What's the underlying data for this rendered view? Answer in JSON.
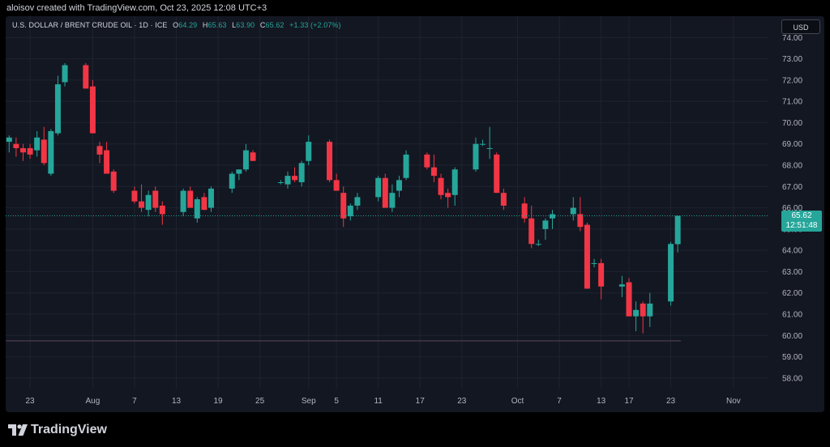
{
  "header": {
    "created_text": "aloisov created with TradingView.com, Oct 23, 2025 12:08 UTC+3"
  },
  "legend": {
    "symbol": "U.S. DOLLAR / BRENT CRUDE OIL · 1D · ICE",
    "o_label": "O",
    "o_value": "64.29",
    "h_label": "H",
    "h_value": "65.63",
    "l_label": "L",
    "l_value": "63.90",
    "c_label": "C",
    "c_value": "65.62",
    "change": "+1.33 (+2.07%)"
  },
  "currency_button": "USD",
  "price_tag": {
    "price": "65.62",
    "countdown": "12:51:48"
  },
  "footer": {
    "brand": "TradingView"
  },
  "colors": {
    "up": "#26a69a",
    "down": "#f23645",
    "background": "#131722",
    "grid": "#1f2330",
    "text": "#b2b5be"
  },
  "chart_data": {
    "type": "candlestick",
    "ylim": [
      57.5,
      75
    ],
    "y_ticks": [
      "74.00",
      "73.00",
      "72.00",
      "71.00",
      "70.00",
      "69.00",
      "68.00",
      "67.00",
      "66.00",
      "65.00",
      "64.00",
      "63.00",
      "62.00",
      "61.00",
      "60.00",
      "59.00",
      "58.00"
    ],
    "x_ticks": [
      {
        "label": "23",
        "day": 0
      },
      {
        "label": "Aug",
        "day": 9
      },
      {
        "label": "7",
        "day": 15
      },
      {
        "label": "13",
        "day": 21
      },
      {
        "label": "19",
        "day": 27
      },
      {
        "label": "25",
        "day": 33
      },
      {
        "label": "Sep",
        "day": 40
      },
      {
        "label": "5",
        "day": 44
      },
      {
        "label": "11",
        "day": 50
      },
      {
        "label": "17",
        "day": 56
      },
      {
        "label": "23",
        "day": 62
      },
      {
        "label": "Oct",
        "day": 70
      },
      {
        "label": "7",
        "day": 76
      },
      {
        "label": "13",
        "day": 82
      },
      {
        "label": "17",
        "day": 86
      },
      {
        "label": "23",
        "day": 92
      },
      {
        "label": "Nov",
        "day": 101
      }
    ],
    "x_range_days": [
      -3.5,
      105.9
    ],
    "last_price": 65.62,
    "horizontal_line": 59.75,
    "candles": [
      {
        "d": -3,
        "o": 69.1,
        "h": 69.4,
        "l": 68.6,
        "c": 69.3
      },
      {
        "d": -2,
        "o": 69.0,
        "h": 69.3,
        "l": 68.4,
        "c": 68.8
      },
      {
        "d": -1,
        "o": 68.8,
        "h": 69.0,
        "l": 68.2,
        "c": 68.6
      },
      {
        "d": 0,
        "o": 68.8,
        "h": 69.0,
        "l": 68.3,
        "c": 68.5
      },
      {
        "d": 1,
        "o": 68.7,
        "h": 69.6,
        "l": 68.4,
        "c": 69.3
      },
      {
        "d": 2,
        "o": 69.2,
        "h": 69.8,
        "l": 68.0,
        "c": 68.1
      },
      {
        "d": 3,
        "o": 67.6,
        "h": 69.7,
        "l": 67.5,
        "c": 69.6
      },
      {
        "d": 4,
        "o": 69.5,
        "h": 72.2,
        "l": 69.4,
        "c": 71.8
      },
      {
        "d": 5,
        "o": 71.9,
        "h": 72.8,
        "l": 71.7,
        "c": 72.7
      },
      {
        "d": 8,
        "o": 72.7,
        "h": 72.8,
        "l": 71.6,
        "c": 71.6
      },
      {
        "d": 9,
        "o": 71.7,
        "h": 72.0,
        "l": 69.5,
        "c": 69.5
      },
      {
        "d": 10,
        "o": 68.9,
        "h": 69.1,
        "l": 68.1,
        "c": 68.5
      },
      {
        "d": 11,
        "o": 68.7,
        "h": 69.1,
        "l": 67.6,
        "c": 67.6
      },
      {
        "d": 12,
        "o": 67.7,
        "h": 67.8,
        "l": 66.7,
        "c": 66.8
      },
      {
        "d": 15,
        "o": 66.8,
        "h": 67.0,
        "l": 66.2,
        "c": 66.3
      },
      {
        "d": 16,
        "o": 66.3,
        "h": 67.1,
        "l": 65.8,
        "c": 66.0
      },
      {
        "d": 17,
        "o": 65.9,
        "h": 66.8,
        "l": 65.6,
        "c": 66.6
      },
      {
        "d": 18,
        "o": 66.8,
        "h": 67.0,
        "l": 65.8,
        "c": 66.0
      },
      {
        "d": 19,
        "o": 66.1,
        "h": 66.3,
        "l": 65.2,
        "c": 65.7
      },
      {
        "d": 22,
        "o": 65.8,
        "h": 66.9,
        "l": 65.6,
        "c": 66.8
      },
      {
        "d": 23,
        "o": 66.8,
        "h": 67.0,
        "l": 66.0,
        "c": 66.0
      },
      {
        "d": 24,
        "o": 65.5,
        "h": 66.5,
        "l": 65.3,
        "c": 66.4
      },
      {
        "d": 25,
        "o": 66.5,
        "h": 66.7,
        "l": 65.9,
        "c": 65.9
      },
      {
        "d": 26,
        "o": 66.0,
        "h": 67.0,
        "l": 65.8,
        "c": 66.9
      },
      {
        "d": 29,
        "o": 66.9,
        "h": 67.7,
        "l": 66.7,
        "c": 67.6
      },
      {
        "d": 30,
        "o": 67.6,
        "h": 67.8,
        "l": 67.3,
        "c": 67.8
      },
      {
        "d": 31,
        "o": 67.8,
        "h": 69.0,
        "l": 67.7,
        "c": 68.7
      },
      {
        "d": 32,
        "o": 68.6,
        "h": 68.7,
        "l": 68.2,
        "c": 68.2
      },
      {
        "d": 36,
        "o": 67.2,
        "h": 67.3,
        "l": 67.1,
        "c": 67.2
      },
      {
        "d": 37,
        "o": 67.1,
        "h": 67.7,
        "l": 66.9,
        "c": 67.5
      },
      {
        "d": 38,
        "o": 67.5,
        "h": 67.9,
        "l": 67.2,
        "c": 67.3
      },
      {
        "d": 39,
        "o": 67.2,
        "h": 68.2,
        "l": 67.0,
        "c": 68.1
      },
      {
        "d": 40,
        "o": 68.2,
        "h": 69.4,
        "l": 68.0,
        "c": 69.1
      },
      {
        "d": 43,
        "o": 69.1,
        "h": 69.2,
        "l": 67.2,
        "c": 67.3
      },
      {
        "d": 44,
        "o": 67.3,
        "h": 67.6,
        "l": 66.8,
        "c": 66.8
      },
      {
        "d": 45,
        "o": 66.7,
        "h": 67.0,
        "l": 65.1,
        "c": 65.5
      },
      {
        "d": 46,
        "o": 65.6,
        "h": 66.2,
        "l": 65.4,
        "c": 66.1
      },
      {
        "d": 47,
        "o": 66.1,
        "h": 66.7,
        "l": 65.9,
        "c": 66.5
      },
      {
        "d": 50,
        "o": 66.5,
        "h": 67.5,
        "l": 66.3,
        "c": 67.4
      },
      {
        "d": 51,
        "o": 67.4,
        "h": 67.6,
        "l": 66.0,
        "c": 66.0
      },
      {
        "d": 52,
        "o": 66.0,
        "h": 67.1,
        "l": 65.8,
        "c": 66.7
      },
      {
        "d": 53,
        "o": 66.8,
        "h": 67.5,
        "l": 66.5,
        "c": 67.3
      },
      {
        "d": 54,
        "o": 67.4,
        "h": 68.7,
        "l": 67.3,
        "c": 68.5
      },
      {
        "d": 57,
        "o": 68.5,
        "h": 68.6,
        "l": 67.8,
        "c": 67.9
      },
      {
        "d": 58,
        "o": 67.9,
        "h": 68.5,
        "l": 67.2,
        "c": 67.5
      },
      {
        "d": 59,
        "o": 67.4,
        "h": 67.6,
        "l": 66.4,
        "c": 66.6
      },
      {
        "d": 60,
        "o": 66.7,
        "h": 66.9,
        "l": 66.0,
        "c": 66.5
      },
      {
        "d": 61,
        "o": 66.6,
        "h": 67.9,
        "l": 66.1,
        "c": 67.8
      },
      {
        "d": 64,
        "o": 67.8,
        "h": 69.3,
        "l": 67.7,
        "c": 69.0
      },
      {
        "d": 65,
        "o": 69.0,
        "h": 69.2,
        "l": 68.9,
        "c": 69.0
      },
      {
        "d": 66,
        "o": 68.8,
        "h": 69.8,
        "l": 68.3,
        "c": 68.8
      },
      {
        "d": 67,
        "o": 68.5,
        "h": 68.6,
        "l": 66.7,
        "c": 66.7
      },
      {
        "d": 68,
        "o": 66.7,
        "h": 66.9,
        "l": 65.9,
        "c": 66.1
      },
      {
        "d": 71,
        "o": 66.2,
        "h": 66.5,
        "l": 65.3,
        "c": 65.5
      },
      {
        "d": 72,
        "o": 65.5,
        "h": 66.1,
        "l": 64.1,
        "c": 64.3
      },
      {
        "d": 73,
        "o": 64.3,
        "h": 64.5,
        "l": 64.2,
        "c": 64.3
      },
      {
        "d": 74,
        "o": 65.0,
        "h": 65.5,
        "l": 64.5,
        "c": 65.4
      },
      {
        "d": 75,
        "o": 65.5,
        "h": 65.9,
        "l": 65.0,
        "c": 65.7
      },
      {
        "d": 78,
        "o": 65.7,
        "h": 66.5,
        "l": 65.4,
        "c": 66.0
      },
      {
        "d": 79,
        "o": 65.7,
        "h": 66.5,
        "l": 64.9,
        "c": 65.1
      },
      {
        "d": 80,
        "o": 65.2,
        "h": 65.3,
        "l": 62.2,
        "c": 62.2
      },
      {
        "d": 81,
        "o": 63.4,
        "h": 63.6,
        "l": 63.2,
        "c": 63.4
      },
      {
        "d": 82,
        "o": 63.4,
        "h": 63.6,
        "l": 61.7,
        "c": 62.3
      },
      {
        "d": 85,
        "o": 62.3,
        "h": 62.8,
        "l": 61.8,
        "c": 62.4
      },
      {
        "d": 86,
        "o": 62.5,
        "h": 62.7,
        "l": 60.9,
        "c": 60.9
      },
      {
        "d": 87,
        "o": 60.9,
        "h": 61.6,
        "l": 60.2,
        "c": 61.2
      },
      {
        "d": 88,
        "o": 61.5,
        "h": 61.6,
        "l": 60.1,
        "c": 60.9
      },
      {
        "d": 89,
        "o": 60.9,
        "h": 62.0,
        "l": 60.4,
        "c": 61.5
      },
      {
        "d": 92,
        "o": 61.6,
        "h": 64.4,
        "l": 61.4,
        "c": 64.3
      },
      {
        "d": 93,
        "o": 64.29,
        "h": 65.63,
        "l": 63.9,
        "c": 65.62
      }
    ]
  }
}
